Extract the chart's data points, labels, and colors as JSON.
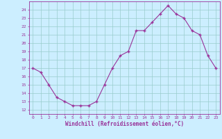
{
  "x": [
    0,
    1,
    2,
    3,
    4,
    5,
    6,
    7,
    8,
    9,
    10,
    11,
    12,
    13,
    14,
    15,
    16,
    17,
    18,
    19,
    20,
    21,
    22,
    23
  ],
  "y": [
    17.0,
    16.5,
    15.0,
    13.5,
    13.0,
    12.5,
    12.5,
    12.5,
    13.0,
    15.0,
    17.0,
    18.5,
    19.0,
    21.5,
    21.5,
    22.5,
    23.5,
    24.5,
    23.5,
    23.0,
    21.5,
    21.0,
    18.5,
    17.0
  ],
  "line_color": "#993399",
  "marker_color": "#993399",
  "bg_color": "#cceeff",
  "grid_color": "#99cccc",
  "xlabel": "Windchill (Refroidissement éolien,°C)",
  "ylabel_ticks": [
    12,
    13,
    14,
    15,
    16,
    17,
    18,
    19,
    20,
    21,
    22,
    23,
    24
  ],
  "xlim": [
    -0.5,
    23.5
  ],
  "ylim": [
    11.5,
    25.0
  ],
  "xticks": [
    0,
    1,
    2,
    3,
    4,
    5,
    6,
    7,
    8,
    9,
    10,
    11,
    12,
    13,
    14,
    15,
    16,
    17,
    18,
    19,
    20,
    21,
    22,
    23
  ]
}
